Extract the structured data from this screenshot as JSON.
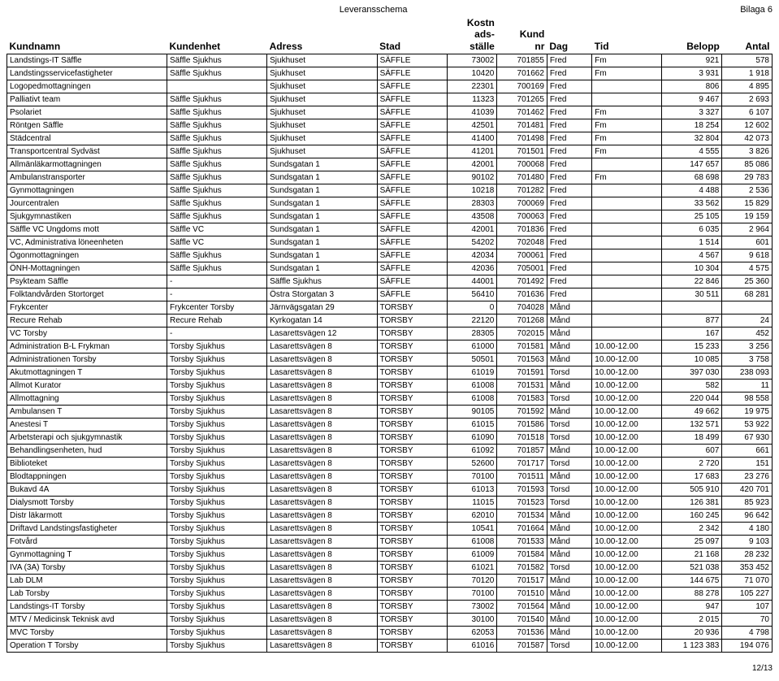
{
  "doc_title": "Leveransschema",
  "doc_tag": "Bilaga 6",
  "page_footer": "12/13",
  "columns": [
    {
      "key": "kundnamn",
      "label": "Kundnamn",
      "width": 160,
      "align": "left"
    },
    {
      "key": "kundenhet",
      "label": "Kundenhet",
      "width": 100,
      "align": "left"
    },
    {
      "key": "adress",
      "label": "Adress",
      "width": 110,
      "align": "left"
    },
    {
      "key": "stad",
      "label": "Stad",
      "width": 70,
      "align": "left"
    },
    {
      "key": "kostn",
      "label": "Kostn\nads-\nställe",
      "width": 50,
      "align": "right"
    },
    {
      "key": "kundnr",
      "label": "Kund\nnr",
      "width": 50,
      "align": "right"
    },
    {
      "key": "dag",
      "label": "Dag",
      "width": 45,
      "align": "left"
    },
    {
      "key": "tid",
      "label": "Tid",
      "width": 70,
      "align": "left"
    },
    {
      "key": "belopp",
      "label": "Belopp",
      "width": 60,
      "align": "right"
    },
    {
      "key": "antal",
      "label": "Antal",
      "width": 50,
      "align": "right"
    }
  ],
  "rows": [
    [
      "Landstings-IT Säffle",
      "Säffle Sjukhus",
      "Sjukhuset",
      "SÄFFLE",
      "73002",
      "701855",
      "Fred",
      "Fm",
      "921",
      "578"
    ],
    [
      "Landstingsservicefastigheter",
      "Säffle Sjukhus",
      "Sjukhuset",
      "SÄFFLE",
      "10420",
      "701662",
      "Fred",
      "Fm",
      "3 931",
      "1 918"
    ],
    [
      "Logopedmottagningen",
      "",
      "Sjukhuset",
      "SÄFFLE",
      "22301",
      "700169",
      "Fred",
      "",
      "806",
      "4 895"
    ],
    [
      "Palliativt team",
      "Säffle Sjukhus",
      "Sjukhuset",
      "SÄFFLE",
      "11323",
      "701265",
      "Fred",
      "",
      "9 467",
      "2 693"
    ],
    [
      "Psolariet",
      "Säffle Sjukhus",
      "Sjukhuset",
      "SÄFFLE",
      "41039",
      "701462",
      "Fred",
      "Fm",
      "3 327",
      "6 107"
    ],
    [
      "Röntgen Säffle",
      "Säffle Sjukhus",
      "Sjukhuset",
      "SÄFFLE",
      "42501",
      "701481",
      "Fred",
      "Fm",
      "18 254",
      "12 602"
    ],
    [
      "Städcentral",
      "Säffle Sjukhus",
      "Sjukhuset",
      "SÄFFLE",
      "41400",
      "701498",
      "Fred",
      "Fm",
      "32 804",
      "42 073"
    ],
    [
      "Transportcentral Sydväst",
      "Säffle Sjukhus",
      "Sjukhuset",
      "SÄFFLE",
      "41201",
      "701501",
      "Fred",
      "Fm",
      "4 555",
      "3 826"
    ],
    [
      "Allmänläkarmottagningen",
      "Säffle Sjukhus",
      "Sundsgatan 1",
      "SÄFFLE",
      "42001",
      "700068",
      "Fred",
      "",
      "147 657",
      "85 086"
    ],
    [
      "Ambulanstransporter",
      "Säffle Sjukhus",
      "Sundsgatan 1",
      "SÄFFLE",
      "90102",
      "701480",
      "Fred",
      "Fm",
      "68 698",
      "29 783"
    ],
    [
      "Gynmottagningen",
      "Säffle Sjukhus",
      "Sundsgatan 1",
      "SÄFFLE",
      "10218",
      "701282",
      "Fred",
      "",
      "4 488",
      "2 536"
    ],
    [
      "Jourcentralen",
      "Säffle Sjukhus",
      "Sundsgatan 1",
      "SÄFFLE",
      "28303",
      "700069",
      "Fred",
      "",
      "33 562",
      "15 829"
    ],
    [
      "Sjukgymnastiken",
      "Säffle Sjukhus",
      "Sundsgatan 1",
      "SÄFFLE",
      "43508",
      "700063",
      "Fred",
      "",
      "25 105",
      "19 159"
    ],
    [
      "Säffle VC Ungdoms mott",
      "Säffle VC",
      "Sundsgatan 1",
      "SÄFFLE",
      "42001",
      "701836",
      "Fred",
      "",
      "6 035",
      "2 964"
    ],
    [
      "VC, Administrativa löneenheten",
      "Säffle VC",
      "Sundsgatan 1",
      "SÄFFLE",
      "54202",
      "702048",
      "Fred",
      "",
      "1 514",
      "601"
    ],
    [
      "Ögonmottagningen",
      "Säffle Sjukhus",
      "Sundsgatan 1",
      "SÄFFLE",
      "42034",
      "700061",
      "Fred",
      "",
      "4 567",
      "9 618"
    ],
    [
      "ÖNH-Mottagningen",
      "Säffle Sjukhus",
      "Sundsgatan 1",
      "SÄFFLE",
      "42036",
      "705001",
      "Fred",
      "",
      "10 304",
      "4 575"
    ],
    [
      "Psykteam Säffle",
      "-",
      "Säffle Sjukhus",
      "SÄFFLE",
      "44001",
      "701492",
      "Fred",
      "",
      "22 846",
      "25 360"
    ],
    [
      "Folktandvården Stortorget",
      "-",
      "Östra Storgatan 3",
      "SÄFFLE",
      "56410",
      "701636",
      "Fred",
      "",
      "30 511",
      "68 281"
    ],
    [
      "Frykcenter",
      "Frykcenter Torsby",
      "Järnvägsgatan 29",
      "TORSBY",
      "0",
      "704028",
      "Månd",
      "",
      "",
      ""
    ],
    [
      "Recure Rehab",
      "Recure Rehab",
      "Kyrkogatan 14",
      "TORSBY",
      "22120",
      "701268",
      "Månd",
      "",
      "877",
      "24"
    ],
    [
      "VC Torsby",
      "-",
      "Lasarettsvägen 12",
      "TORSBY",
      "28305",
      "702015",
      "Månd",
      "",
      "167",
      "452"
    ],
    [
      "Administration B-L Frykman",
      "Torsby Sjukhus",
      "Lasarettsvägen 8",
      "TORSBY",
      "61000",
      "701581",
      "Månd",
      "10.00-12.00",
      "15 233",
      "3 256"
    ],
    [
      "Administrationen Torsby",
      "Torsby Sjukhus",
      "Lasarettsvägen 8",
      "TORSBY",
      "50501",
      "701563",
      "Månd",
      "10.00-12.00",
      "10 085",
      "3 758"
    ],
    [
      "Akutmottagningen T",
      "Torsby Sjukhus",
      "Lasarettsvägen 8",
      "TORSBY",
      "61019",
      "701591",
      "Torsd",
      "10.00-12.00",
      "397 030",
      "238 093"
    ],
    [
      "Allmot Kurator",
      "Torsby Sjukhus",
      "Lasarettsvägen 8",
      "TORSBY",
      "61008",
      "701531",
      "Månd",
      "10.00-12.00",
      "582",
      "11"
    ],
    [
      "Allmottagning",
      "Torsby Sjukhus",
      "Lasarettsvägen 8",
      "TORSBY",
      "61008",
      "701583",
      "Torsd",
      "10.00-12.00",
      "220 044",
      "98 558"
    ],
    [
      "Ambulansen T",
      "Torsby Sjukhus",
      "Lasarettsvägen 8",
      "TORSBY",
      "90105",
      "701592",
      "Månd",
      "10.00-12.00",
      "49 662",
      "19 975"
    ],
    [
      "Anestesi T",
      "Torsby Sjukhus",
      "Lasarettsvägen 8",
      "TORSBY",
      "61015",
      "701586",
      "Torsd",
      "10.00-12.00",
      "132 571",
      "53 922"
    ],
    [
      "Arbetsterapi och sjukgymnastik",
      "Torsby Sjukhus",
      "Lasarettsvägen 8",
      "TORSBY",
      "61090",
      "701518",
      "Torsd",
      "10.00-12.00",
      "18 499",
      "67 930"
    ],
    [
      "Behandlingsenheten, hud",
      "Torsby Sjukhus",
      "Lasarettsvägen 8",
      "TORSBY",
      "61092",
      "701857",
      "Månd",
      "10.00-12.00",
      "607",
      "661"
    ],
    [
      "Biblioteket",
      "Torsby Sjukhus",
      "Lasarettsvägen 8",
      "TORSBY",
      "52600",
      "701717",
      "Torsd",
      "10.00-12.00",
      "2 720",
      "151"
    ],
    [
      "Blodtappningen",
      "Torsby Sjukhus",
      "Lasarettsvägen 8",
      "TORSBY",
      "70100",
      "701511",
      "Månd",
      "10.00-12.00",
      "17 683",
      "23 276"
    ],
    [
      "Bukavd 4A",
      "Torsby Sjukhus",
      "Lasarettsvägen 8",
      "TORSBY",
      "61013",
      "701593",
      "Torsd",
      "10.00-12.00",
      "505 910",
      "420 701"
    ],
    [
      "Dialysmott Torsby",
      "Torsby Sjukhus",
      "Lasarettsvägen 8",
      "TORSBY",
      "11015",
      "701523",
      "Torsd",
      "10.00-12.00",
      "126 381",
      "85 923"
    ],
    [
      "Distr läkarmott",
      "Torsby Sjukhus",
      "Lasarettsvägen 8",
      "TORSBY",
      "62010",
      "701534",
      "Månd",
      "10.00-12.00",
      "160 245",
      "96 642"
    ],
    [
      "Driftavd Landstingsfastigheter",
      "Torsby Sjukhus",
      "Lasarettsvägen 8",
      "TORSBY",
      "10541",
      "701664",
      "Månd",
      "10.00-12.00",
      "2 342",
      "4 180"
    ],
    [
      "Fotvård",
      "Torsby Sjukhus",
      "Lasarettsvägen 8",
      "TORSBY",
      "61008",
      "701533",
      "Månd",
      "10.00-12.00",
      "25 097",
      "9 103"
    ],
    [
      "Gynmottagning T",
      "Torsby Sjukhus",
      "Lasarettsvägen 8",
      "TORSBY",
      "61009",
      "701584",
      "Månd",
      "10.00-12.00",
      "21 168",
      "28 232"
    ],
    [
      "IVA (3A) Torsby",
      "Torsby Sjukhus",
      "Lasarettsvägen 8",
      "TORSBY",
      "61021",
      "701582",
      "Torsd",
      "10.00-12.00",
      "521 038",
      "353 452"
    ],
    [
      "Lab DLM",
      "Torsby Sjukhus",
      "Lasarettsvägen 8",
      "TORSBY",
      "70120",
      "701517",
      "Månd",
      "10.00-12.00",
      "144 675",
      "71 070"
    ],
    [
      "Lab Torsby",
      "Torsby Sjukhus",
      "Lasarettsvägen 8",
      "TORSBY",
      "70100",
      "701510",
      "Månd",
      "10.00-12.00",
      "88 278",
      "105 227"
    ],
    [
      "Landstings-IT Torsby",
      "Torsby Sjukhus",
      "Lasarettsvägen 8",
      "TORSBY",
      "73002",
      "701564",
      "Månd",
      "10.00-12.00",
      "947",
      "107"
    ],
    [
      "MTV / Medicinsk Teknisk avd",
      "Torsby Sjukhus",
      "Lasarettsvägen 8",
      "TORSBY",
      "30100",
      "701540",
      "Månd",
      "10.00-12.00",
      "2 015",
      "70"
    ],
    [
      "MVC Torsby",
      "Torsby Sjukhus",
      "Lasarettsvägen 8",
      "TORSBY",
      "62053",
      "701536",
      "Månd",
      "10.00-12.00",
      "20 936",
      "4 798"
    ],
    [
      "Operation T Torsby",
      "Torsby Sjukhus",
      "Lasarettsvägen 8",
      "TORSBY",
      "61016",
      "701587",
      "Torsd",
      "10.00-12.00",
      "1 123 383",
      "194 076"
    ]
  ]
}
